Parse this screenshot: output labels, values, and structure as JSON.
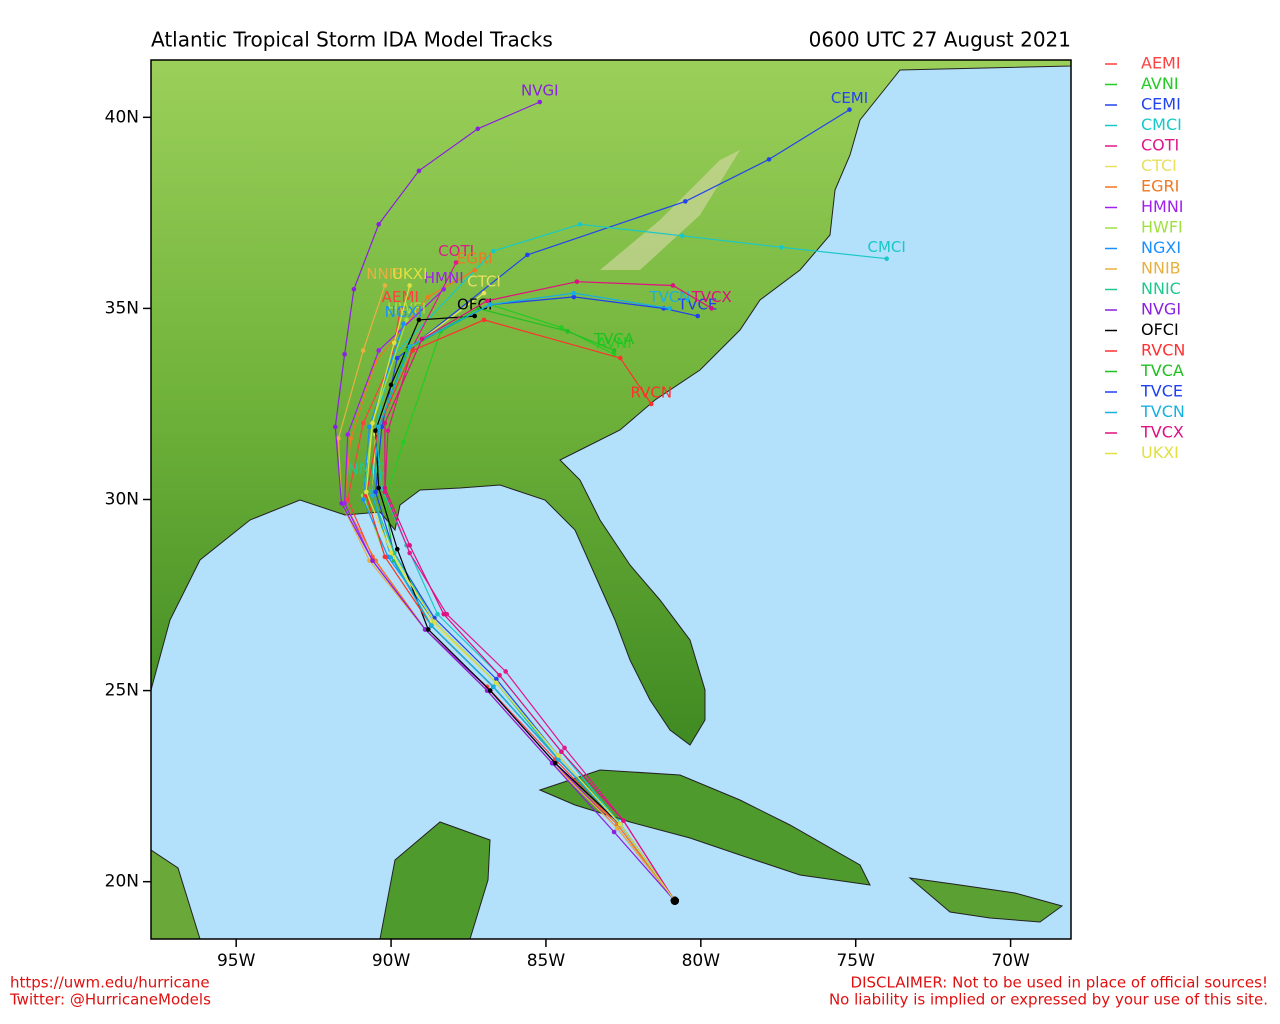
{
  "chart_data": {
    "type": "track-map",
    "title": "Atlantic Tropical Storm IDA Model Tracks",
    "subtitle": "0600 UTC 27 August 2021",
    "footer_left": [
      "https://uwm.edu/hurricane",
      "Twitter: @HurricaneModels"
    ],
    "footer_right": [
      "DISCLAIMER: Not to be used in place of official sources!",
      "No liability is implied or expressed by your use of this site."
    ],
    "xlim": [
      -97.75,
      -68.05
    ],
    "ylim": [
      18.5,
      41.5
    ],
    "xticks": [
      {
        "value": -95,
        "label": "95W"
      },
      {
        "value": -90,
        "label": "90W"
      },
      {
        "value": -85,
        "label": "85W"
      },
      {
        "value": -80,
        "label": "80W"
      },
      {
        "value": -75,
        "label": "75W"
      },
      {
        "value": -70,
        "label": "70W"
      }
    ],
    "yticks": [
      {
        "value": 20,
        "label": "20N"
      },
      {
        "value": 25,
        "label": "25N"
      },
      {
        "value": 30,
        "label": "30N"
      },
      {
        "value": 35,
        "label": "35N"
      },
      {
        "value": 40,
        "label": "40N"
      }
    ],
    "series": [
      {
        "name": "AEMI",
        "color": "#ff4040",
        "lon": [
          -80.84,
          -82.7,
          -84.7,
          -86.9,
          -88.9,
          -90.6,
          -91.4,
          -90.9,
          -90.0,
          -89.7
        ],
        "lat": [
          19.5,
          21.5,
          23.2,
          25.1,
          26.6,
          28.5,
          30.0,
          32.0,
          33.6,
          35.0
        ]
      },
      {
        "name": "AVNI",
        "color": "#22cc22",
        "lon": [
          -80.84,
          -82.6,
          -84.6,
          -86.7,
          -88.7,
          -89.9,
          -90.2,
          -89.6,
          -88.4,
          -86.8,
          -84.5,
          -82.8
        ],
        "lat": [
          19.5,
          21.5,
          23.2,
          25.1,
          26.7,
          28.4,
          30.0,
          31.5,
          34.4,
          35.1,
          34.5,
          33.8
        ]
      },
      {
        "name": "CEMI",
        "color": "#2244ee",
        "lon": [
          -80.84,
          -82.6,
          -84.6,
          -86.6,
          -88.6,
          -89.9,
          -90.5,
          -90.3,
          -89.8,
          -85.6,
          -80.5,
          -77.8,
          -75.2
        ],
        "lat": [
          19.5,
          21.5,
          23.3,
          25.3,
          26.9,
          28.6,
          30.2,
          31.9,
          33.7,
          36.4,
          37.8,
          38.9,
          40.2
        ]
      },
      {
        "name": "CMCI",
        "color": "#18c8c8",
        "lon": [
          -80.84,
          -82.7,
          -84.5,
          -86.5,
          -88.5,
          -89.5,
          -90.3,
          -90.5,
          -90.0,
          -86.7,
          -83.9,
          -80.6,
          -77.4,
          -74.0
        ],
        "lat": [
          19.5,
          21.6,
          23.4,
          25.4,
          27.0,
          28.8,
          30.3,
          31.8,
          33.7,
          36.5,
          37.2,
          36.9,
          36.6,
          36.3
        ]
      },
      {
        "name": "COTI",
        "color": "#e0188c",
        "lon": [
          -80.84,
          -82.5,
          -84.4,
          -86.3,
          -88.2,
          -89.4,
          -90.2,
          -90.1,
          -89.3,
          -87.9
        ],
        "lat": [
          19.5,
          21.6,
          23.5,
          25.5,
          27.0,
          28.6,
          30.2,
          31.8,
          34.0,
          36.2
        ]
      },
      {
        "name": "CTCI",
        "color": "#e8e060",
        "lon": [
          -80.84,
          -82.6,
          -84.6,
          -86.6,
          -88.7,
          -89.9,
          -90.6,
          -90.5,
          -89.5,
          -87.0
        ],
        "lat": [
          19.5,
          21.5,
          23.3,
          25.2,
          26.8,
          28.5,
          30.1,
          31.7,
          33.9,
          35.4
        ]
      },
      {
        "name": "EGRI",
        "color": "#f07820",
        "lon": [
          -80.84,
          -82.7,
          -84.8,
          -86.9,
          -88.9,
          -90.5,
          -91.5,
          -91.3,
          -90.5,
          -88.8,
          -87.3
        ],
        "lat": [
          19.5,
          21.5,
          23.1,
          25.0,
          26.6,
          28.4,
          29.9,
          31.6,
          33.6,
          35.3,
          36.0
        ]
      },
      {
        "name": "HMNI",
        "color": "#a020f0",
        "lon": [
          -80.84,
          -82.7,
          -84.7,
          -86.8,
          -88.9,
          -90.6,
          -91.5,
          -91.4,
          -90.4,
          -88.3
        ],
        "lat": [
          19.5,
          21.4,
          23.1,
          25.0,
          26.6,
          28.4,
          29.9,
          31.7,
          33.9,
          35.5
        ]
      },
      {
        "name": "HWFI",
        "color": "#a0e040",
        "lon": [
          -80.84,
          -82.6,
          -84.6,
          -86.7,
          -88.7,
          -90.2,
          -90.9,
          -90.6,
          -89.5
        ],
        "lat": [
          19.5,
          21.5,
          23.2,
          25.1,
          26.7,
          28.5,
          30.1,
          32.0,
          34.7
        ]
      },
      {
        "name": "NGXI",
        "color": "#1890ff",
        "lon": [
          -80.84,
          -82.6,
          -84.6,
          -86.6,
          -88.6,
          -90.1,
          -90.9,
          -90.7,
          -89.6
        ],
        "lat": [
          19.5,
          21.5,
          23.3,
          25.2,
          26.8,
          28.5,
          30.0,
          31.9,
          34.6
        ]
      },
      {
        "name": "NNIB",
        "color": "#e8b040",
        "lon": [
          -80.84,
          -82.7,
          -84.8,
          -86.9,
          -88.9,
          -90.7,
          -91.6,
          -91.7,
          -90.9,
          -90.2
        ],
        "lat": [
          19.5,
          21.4,
          23.1,
          25.0,
          26.6,
          28.4,
          29.9,
          31.6,
          33.9,
          35.6
        ]
      },
      {
        "name": "NNIC",
        "color": "#20c890",
        "lon": [
          -80.84,
          -82.6,
          -84.6,
          -86.6,
          -88.6,
          -89.9,
          -90.8
        ],
        "lat": [
          19.5,
          21.5,
          23.2,
          25.2,
          26.8,
          28.6,
          30.5
        ]
      },
      {
        "name": "NVGI",
        "color": "#8a20e0",
        "lon": [
          -80.84,
          -82.8,
          -84.8,
          -86.9,
          -88.9,
          -90.6,
          -91.6,
          -91.8,
          -91.5,
          -91.2,
          -90.4,
          -89.1,
          -87.2,
          -85.2
        ],
        "lat": [
          19.5,
          21.3,
          23.1,
          25.0,
          26.6,
          28.4,
          29.9,
          31.9,
          33.8,
          35.5,
          37.2,
          38.6,
          39.7,
          40.4
        ]
      },
      {
        "name": "OFCI",
        "color": "#000000",
        "lon": [
          -80.84,
          -82.6,
          -84.7,
          -86.8,
          -88.8,
          -89.8,
          -90.4,
          -90.5,
          -90.0,
          -89.1,
          -87.3
        ],
        "lat": [
          19.5,
          21.5,
          23.1,
          25.0,
          26.6,
          28.7,
          30.3,
          31.8,
          33.0,
          34.7,
          34.8
        ]
      },
      {
        "name": "RVCN",
        "color": "#ff3030",
        "lon": [
          -80.84,
          -82.6,
          -84.6,
          -86.7,
          -88.7,
          -90.2,
          -90.8,
          -90.4,
          -89.3,
          -87.0,
          -82.6,
          -81.6
        ],
        "lat": [
          19.5,
          21.5,
          23.2,
          25.1,
          26.7,
          28.5,
          30.1,
          31.9,
          33.9,
          34.7,
          33.7,
          32.5
        ]
      },
      {
        "name": "TVCA",
        "color": "#20c020",
        "lon": [
          -80.84,
          -82.6,
          -84.6,
          -86.7,
          -88.7,
          -90.0,
          -90.6,
          -90.4,
          -89.5,
          -87.2,
          -84.3,
          -82.8
        ],
        "lat": [
          19.5,
          21.5,
          23.2,
          25.1,
          26.7,
          28.5,
          30.1,
          31.9,
          33.9,
          35.0,
          34.4,
          33.9
        ]
      },
      {
        "name": "TVCE",
        "color": "#2040f0",
        "lon": [
          -80.84,
          -82.6,
          -84.6,
          -86.7,
          -88.7,
          -90.0,
          -90.6,
          -90.4,
          -89.4,
          -86.8,
          -84.1,
          -81.2,
          -80.1
        ],
        "lat": [
          19.5,
          21.5,
          23.2,
          25.1,
          26.7,
          28.5,
          30.1,
          31.9,
          34.0,
          35.1,
          35.3,
          35.0,
          34.8
        ]
      },
      {
        "name": "TVCN",
        "color": "#18b0e0",
        "lon": [
          -80.84,
          -82.6,
          -84.6,
          -86.7,
          -88.7,
          -90.0,
          -90.6,
          -90.4,
          -89.4,
          -86.8,
          -84.1,
          -81.0
        ],
        "lat": [
          19.5,
          21.5,
          23.2,
          25.1,
          26.7,
          28.5,
          30.1,
          31.9,
          34.0,
          35.1,
          35.4,
          35.0
        ]
      },
      {
        "name": "TVCX",
        "color": "#e01080",
        "lon": [
          -80.84,
          -82.5,
          -84.5,
          -86.5,
          -88.3,
          -89.4,
          -90.2,
          -90.2,
          -89.0,
          -86.9,
          -84.0,
          -80.9,
          -79.65
        ],
        "lat": [
          19.5,
          21.6,
          23.4,
          25.4,
          27.0,
          28.8,
          30.3,
          32.0,
          34.2,
          35.2,
          35.7,
          35.6,
          35.0
        ]
      },
      {
        "name": "UKXI",
        "color": "#e0e040",
        "lon": [
          -80.84,
          -82.6,
          -84.6,
          -86.6,
          -88.6,
          -90.0,
          -90.8,
          -90.6,
          -89.9,
          -89.4
        ],
        "lat": [
          19.5,
          21.5,
          23.3,
          25.2,
          26.8,
          28.6,
          30.2,
          32.0,
          34.1,
          35.6
        ]
      }
    ]
  }
}
